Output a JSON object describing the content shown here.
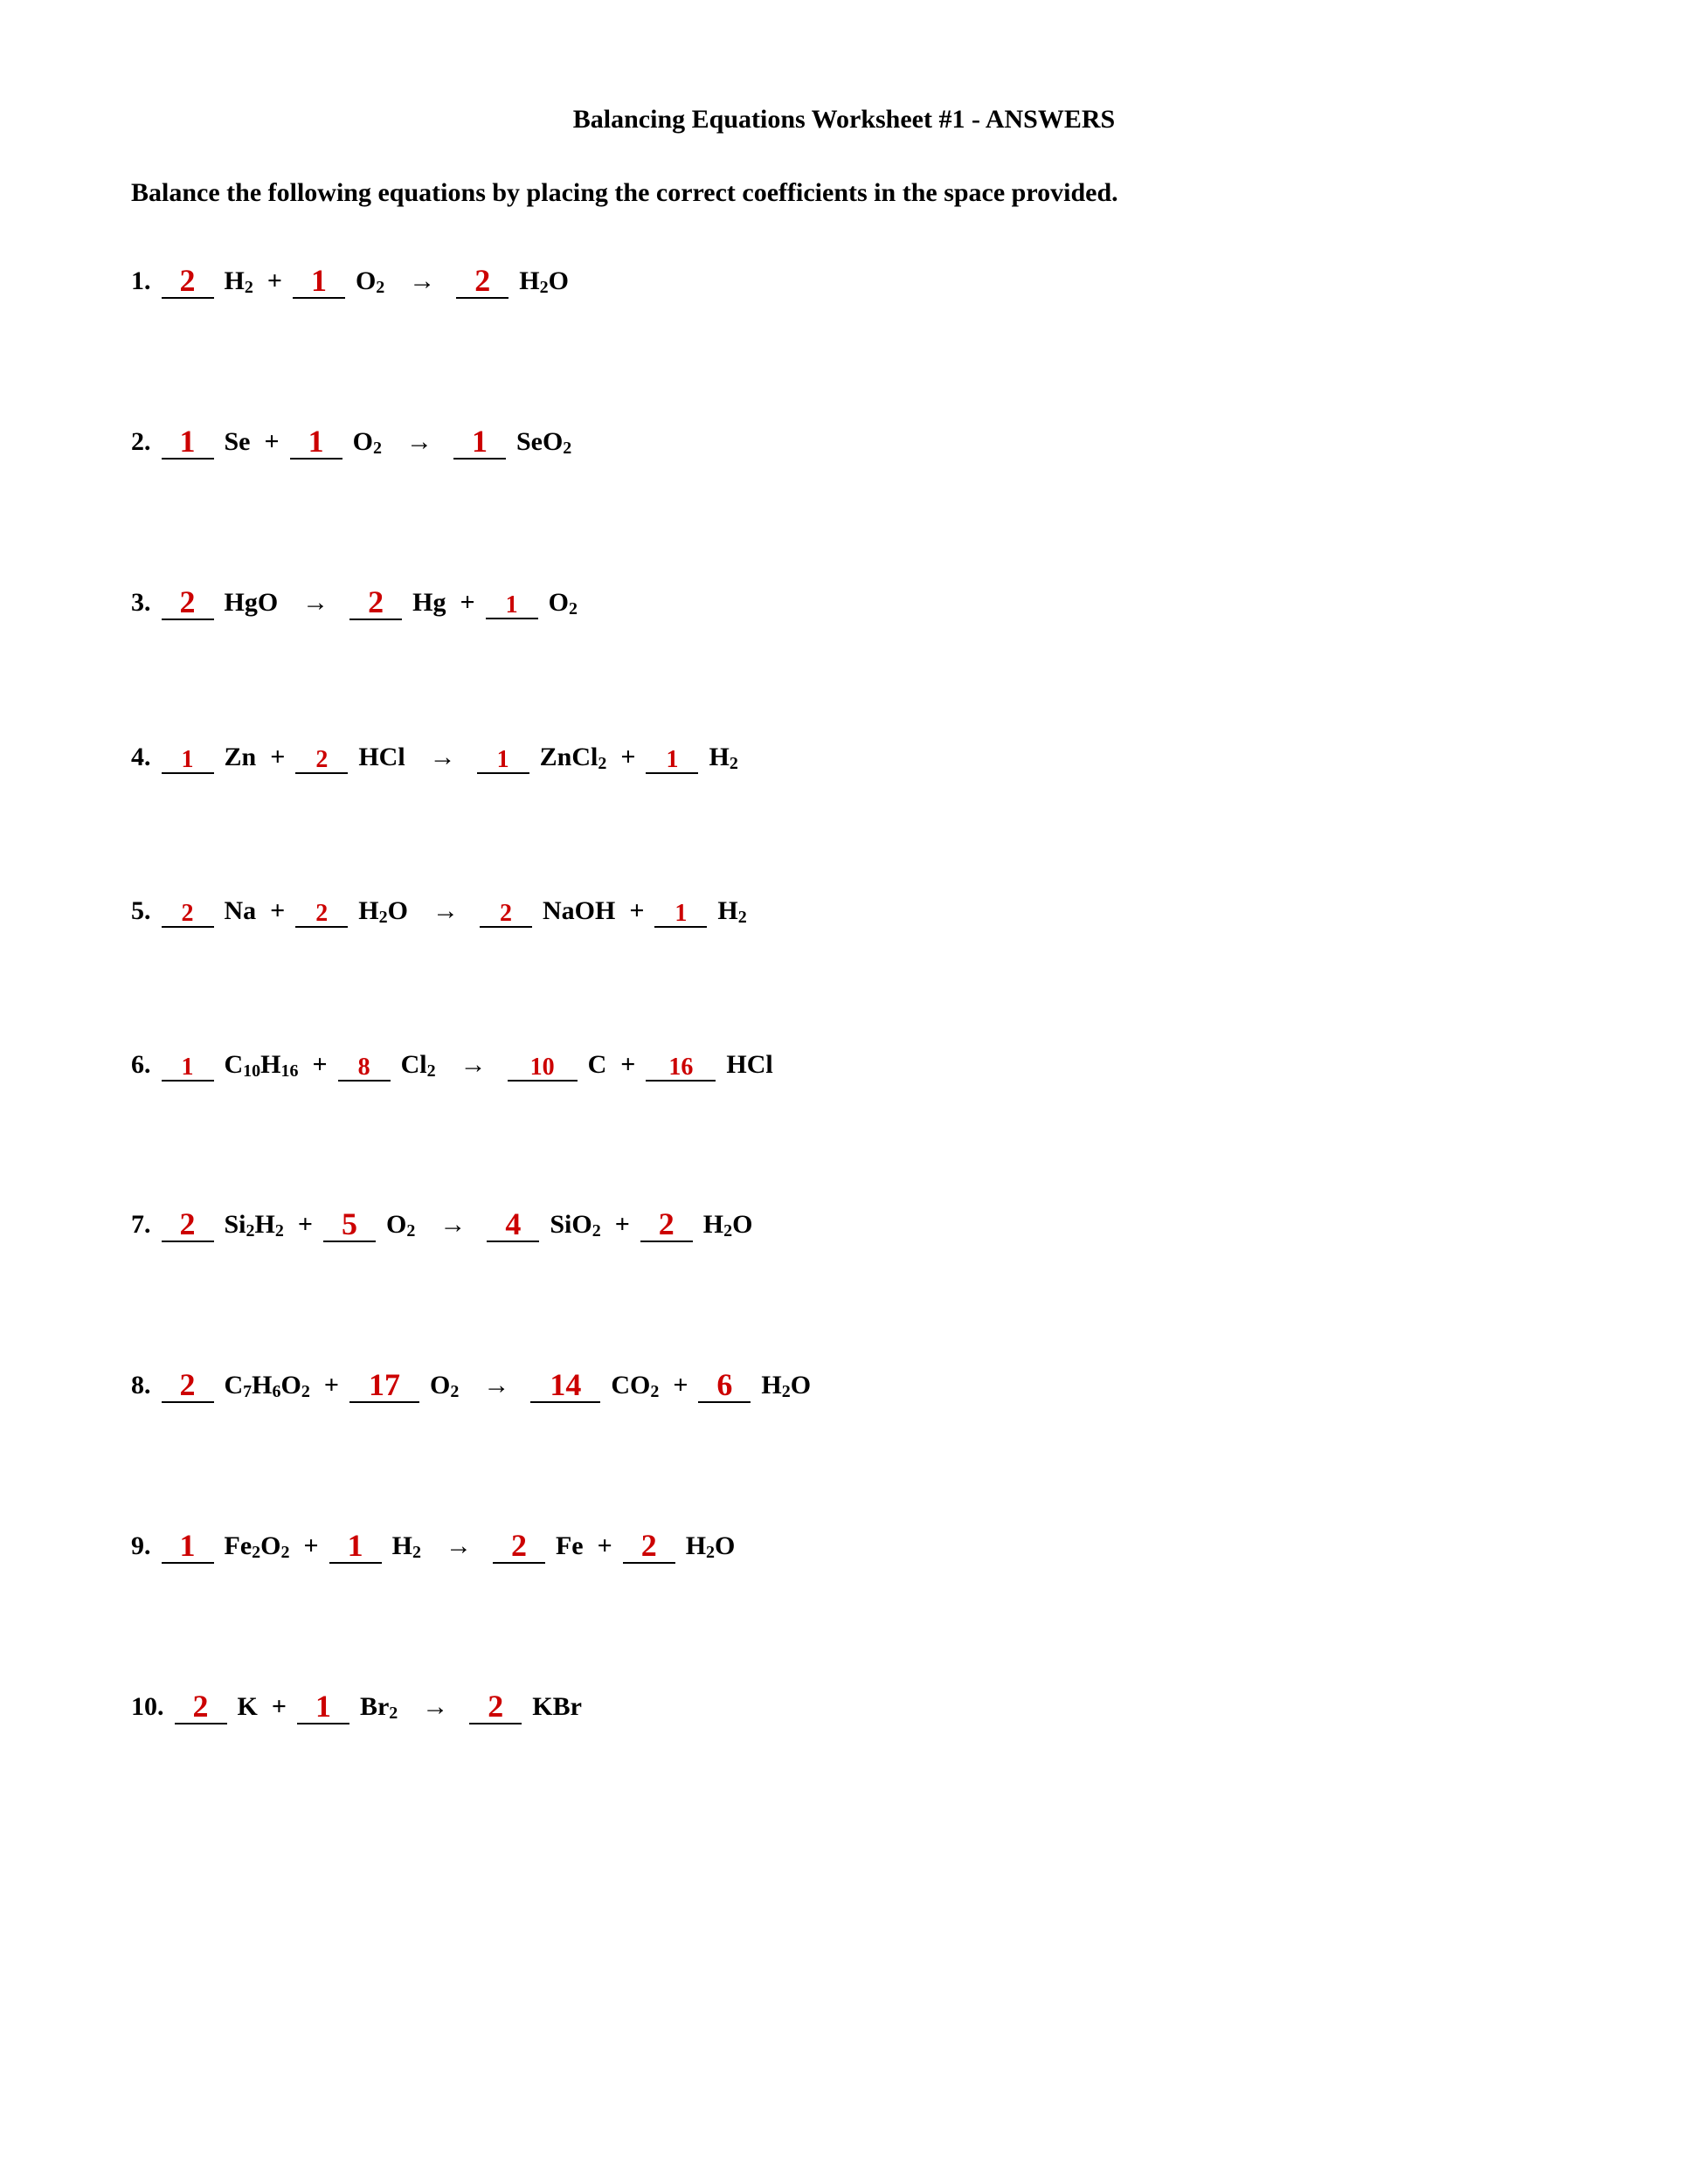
{
  "title": "Balancing Equations Worksheet #1 - ANSWERS",
  "instructions": "Balance the following equations by placing the correct coefficients in the space provided.",
  "colors": {
    "answer": "#cc0000",
    "text": "#000000",
    "background": "#ffffff"
  },
  "typography": {
    "body_fontsize": 30,
    "coef_fontsize": 36,
    "coef_small_fontsize": 28,
    "sub_fontsize": 20,
    "font_family": "Times New Roman"
  },
  "arrow_glyph": "→",
  "equations": [
    {
      "number": "1.",
      "terms": [
        {
          "coef": "2",
          "formula": "H",
          "sub": "2"
        },
        {
          "op": "+"
        },
        {
          "coef": "1",
          "formula": "O",
          "sub": "2"
        },
        {
          "arrow": true
        },
        {
          "coef": "2",
          "formula": "H",
          "sub": "2",
          "tail": "O"
        }
      ]
    },
    {
      "number": "2.",
      "terms": [
        {
          "coef": "1",
          "formula": "Se"
        },
        {
          "op": "+"
        },
        {
          "coef": "1",
          "formula": "O",
          "sub": "2"
        },
        {
          "arrow": true
        },
        {
          "coef": "1",
          "formula": "SeO",
          "sub": "2"
        }
      ]
    },
    {
      "number": "3.",
      "terms": [
        {
          "coef": "2",
          "formula": "HgO"
        },
        {
          "arrow": true
        },
        {
          "coef": "2",
          "formula": "Hg"
        },
        {
          "op": "+"
        },
        {
          "coef": "1",
          "coef_sm": true,
          "formula": "O",
          "sub": "2"
        }
      ]
    },
    {
      "number": "4.",
      "terms": [
        {
          "coef": "1",
          "coef_sm": true,
          "formula": "Zn"
        },
        {
          "op": "+"
        },
        {
          "coef": "2",
          "coef_sm": true,
          "formula": "HCl"
        },
        {
          "arrow": true
        },
        {
          "coef": "1",
          "coef_sm": true,
          "formula": "ZnCl",
          "sub": "2"
        },
        {
          "op": "+"
        },
        {
          "coef": "1",
          "coef_sm": true,
          "formula": "H",
          "sub": "2"
        }
      ]
    },
    {
      "number": "5.",
      "terms": [
        {
          "coef": "2",
          "coef_sm": true,
          "formula": "Na"
        },
        {
          "op": "+"
        },
        {
          "coef": "2",
          "coef_sm": true,
          "formula": "H",
          "sub": "2",
          "tail": "O"
        },
        {
          "arrow": true
        },
        {
          "coef": "2",
          "coef_sm": true,
          "formula": "NaOH"
        },
        {
          "op": "+"
        },
        {
          "coef": "1",
          "coef_sm": true,
          "formula": "H",
          "sub": "2"
        }
      ]
    },
    {
      "number": "6.",
      "terms": [
        {
          "coef": "1",
          "coef_sm": true,
          "formula": "C",
          "sub": "10",
          "tail": "H",
          "sub2": "16"
        },
        {
          "op": "+"
        },
        {
          "coef": "8",
          "coef_sm": true,
          "formula": "Cl",
          "sub": "2"
        },
        {
          "arrow": true
        },
        {
          "coef": "10",
          "coef_sm": true,
          "formula": "C"
        },
        {
          "op": "+"
        },
        {
          "coef": "16",
          "coef_sm": true,
          "formula": "HCl"
        }
      ]
    },
    {
      "number": "7.",
      "terms": [
        {
          "coef": "2",
          "formula": "Si",
          "sub": "2",
          "tail": "H",
          "sub2": "2"
        },
        {
          "op": "+"
        },
        {
          "coef": "5",
          "formula": "O",
          "sub": "2"
        },
        {
          "arrow": true
        },
        {
          "coef": "4",
          "formula": "SiO",
          "sub": "2"
        },
        {
          "op": "+"
        },
        {
          "coef": "2",
          "formula": "H",
          "sub": "2",
          "tail": "O"
        }
      ]
    },
    {
      "number": "8.",
      "terms": [
        {
          "coef": "2",
          "formula": "C",
          "sub": "7",
          "tail": "H",
          "sub2": "6",
          "tail2": "O",
          "sub3": "2"
        },
        {
          "op": "+"
        },
        {
          "coef": "17",
          "formula": "O",
          "sub": "2"
        },
        {
          "arrow": true
        },
        {
          "coef": "14",
          "formula": "CO",
          "sub": "2"
        },
        {
          "op": "+"
        },
        {
          "coef": "6",
          "formula": "H",
          "sub": "2",
          "tail": "O"
        }
      ]
    },
    {
      "number": "9.",
      "terms": [
        {
          "coef": "1",
          "formula": "Fe",
          "sub": "2",
          "tail": "O",
          "sub2": "2"
        },
        {
          "op": "+"
        },
        {
          "coef": "1",
          "formula": "H",
          "sub": "2"
        },
        {
          "arrow": true
        },
        {
          "coef": "2",
          "formula": "Fe"
        },
        {
          "op": "+"
        },
        {
          "coef": "2",
          "formula": "H",
          "sub": "2",
          "tail": "O"
        }
      ]
    },
    {
      "number": "10.",
      "terms": [
        {
          "coef": "2",
          "formula": "K"
        },
        {
          "op": "+"
        },
        {
          "coef": "1",
          "formula": "Br",
          "sub": "2"
        },
        {
          "arrow": true
        },
        {
          "coef": "2",
          "formula": "KBr"
        }
      ]
    }
  ]
}
